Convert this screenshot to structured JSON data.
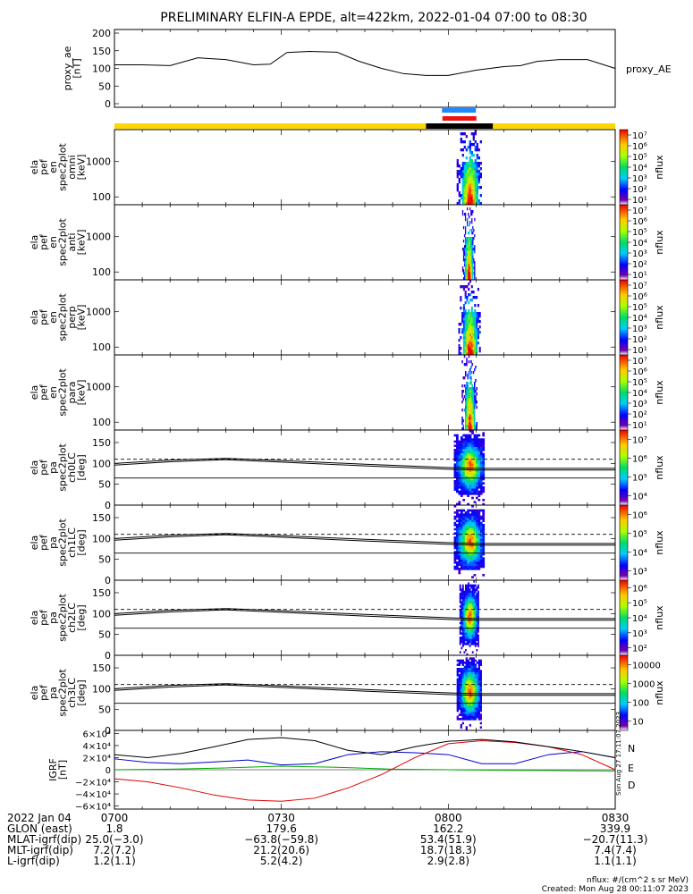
{
  "title": "PRELIMINARY ELFIN-A EPDE, alt=422km, 2022-01-04 07:00 to 08:30",
  "footer": {
    "units": "nflux: #/(cm^2 s sr MeV)",
    "created": "Created: Mon Aug 28 00:11:07 2023",
    "side_stamp": "Sun Aug 27 17:11:07 2023"
  },
  "colors": {
    "ae_line": "#000000",
    "science_bar": "#ffd700",
    "science_marker": "#000000",
    "spin_blue": "#1e88ff",
    "spin_red": "#ee1111",
    "igrf_n": "#0000cc",
    "igrf_e": "#00aa00",
    "igrf_d": "#dd0000",
    "igrf_total": "#000000"
  },
  "chart_data": [
    {
      "type": "line",
      "id": "proxy_ae",
      "ylabel": "proxy_ae [nT]",
      "legend": "proxy_AE",
      "ylim": [
        0,
        200
      ],
      "yticks": [
        "0",
        "50",
        "100",
        "150",
        "200"
      ],
      "x": [
        0,
        5,
        10,
        15,
        17,
        20,
        25,
        28,
        31,
        35,
        40,
        44,
        48,
        52,
        56,
        60,
        65,
        70,
        73,
        76,
        80,
        85,
        90
      ],
      "values": [
        110,
        110,
        108,
        130,
        128,
        125,
        110,
        112,
        145,
        148,
        146,
        120,
        100,
        85,
        80,
        80,
        95,
        105,
        108,
        120,
        125,
        125,
        100
      ]
    },
    {
      "type": "table",
      "id": "science_zone_bar",
      "science_zone_minutes": [
        [
          56,
          68
        ]
      ],
      "spin_markers": [
        "blue",
        "red"
      ]
    },
    {
      "type": "heatmap",
      "id": "en_omni",
      "ylabel": [
        "ela",
        "pef",
        "en",
        "spec2plot",
        "omni",
        "[keV]"
      ],
      "ylim": [
        60,
        8000
      ],
      "scale": "log",
      "yticks": [
        "100",
        "1000"
      ],
      "zlabel": "nflux",
      "zticks": [
        "10¹",
        "10²",
        "10³",
        "10⁴",
        "10⁵",
        "10⁶",
        "10⁷"
      ],
      "x_range": [
        61.5,
        66
      ]
    },
    {
      "type": "heatmap",
      "id": "en_anti",
      "ylabel": [
        "ela",
        "pef",
        "en",
        "spec2plot",
        "anti",
        "[keV]"
      ],
      "ylim": [
        60,
        8000
      ],
      "scale": "log",
      "yticks": [
        "100",
        "1000"
      ],
      "zlabel": "nflux",
      "zticks": [
        "10¹",
        "10²",
        "10³",
        "10⁴",
        "10⁵",
        "10⁶",
        "10⁷"
      ],
      "x_range": [
        62.5,
        64.8
      ]
    },
    {
      "type": "heatmap",
      "id": "en_perp",
      "ylabel": [
        "ela",
        "pef",
        "en",
        "spec2plot",
        "perp",
        "[keV]"
      ],
      "ylim": [
        60,
        8000
      ],
      "scale": "log",
      "yticks": [
        "100",
        "1000"
      ],
      "zlabel": "nflux",
      "zticks": [
        "10¹",
        "10²",
        "10³",
        "10⁴",
        "10⁵",
        "10⁶",
        "10⁷"
      ],
      "x_range": [
        61.8,
        65.8
      ]
    },
    {
      "type": "heatmap",
      "id": "en_para",
      "ylabel": [
        "ela",
        "pef",
        "en",
        "spec2plot",
        "para",
        "[keV]"
      ],
      "ylim": [
        60,
        8000
      ],
      "scale": "log",
      "yticks": [
        "100",
        "1000"
      ],
      "zlabel": "nflux",
      "zticks": [
        "10¹",
        "10²",
        "10³",
        "10⁴",
        "10⁵",
        "10⁶",
        "10⁷"
      ],
      "x_range": [
        62.4,
        65.2
      ]
    },
    {
      "type": "heatmap",
      "id": "pa_ch0",
      "ylabel": [
        "ela",
        "pef",
        "pa",
        "spec2plot",
        "ch0LC",
        "[deg]"
      ],
      "ylim": [
        0,
        180
      ],
      "yticks": [
        "0",
        "50",
        "100",
        "150"
      ],
      "zlabel": "nflux",
      "zticks": [
        "10⁴",
        "10⁵",
        "10⁶",
        "10⁷"
      ],
      "x_range": [
        61.0,
        66.5
      ],
      "loss_cone_deg": 110,
      "tracks": {
        "x": [
          0,
          10,
          20,
          30,
          45,
          60,
          65
        ],
        "upper": [
          100,
          108,
          112,
          107,
          98,
          90,
          88
        ],
        "lower": [
          96,
          104,
          109,
          103,
          94,
          86,
          84
        ]
      }
    },
    {
      "type": "heatmap",
      "id": "pa_ch1",
      "ylabel": [
        "ela",
        "pef",
        "pa",
        "spec2plot",
        "ch1LC",
        "[deg]"
      ],
      "ylim": [
        0,
        180
      ],
      "yticks": [
        "0",
        "50",
        "100",
        "150"
      ],
      "zlabel": "nflux",
      "zticks": [
        "10³",
        "10⁴",
        "10⁵",
        "10⁶"
      ],
      "x_range": [
        61.0,
        66.5
      ],
      "loss_cone_deg": 110,
      "tracks": {
        "x": [
          0,
          10,
          20,
          30,
          45,
          60,
          65
        ],
        "upper": [
          100,
          108,
          112,
          107,
          98,
          90,
          88
        ],
        "lower": [
          96,
          104,
          109,
          103,
          94,
          86,
          84
        ]
      }
    },
    {
      "type": "heatmap",
      "id": "pa_ch2",
      "ylabel": [
        "ela",
        "pef",
        "pa",
        "spec2plot",
        "ch2LC",
        "[deg]"
      ],
      "ylim": [
        0,
        180
      ],
      "yticks": [
        "0",
        "50",
        "100",
        "150"
      ],
      "zlabel": "nflux",
      "zticks": [
        "10²",
        "10³",
        "10⁴",
        "10⁵",
        "10⁶"
      ],
      "x_range": [
        62.0,
        65.5
      ],
      "loss_cone_deg": 110,
      "tracks": {
        "x": [
          0,
          10,
          20,
          30,
          45,
          60,
          65
        ],
        "upper": [
          100,
          108,
          112,
          107,
          98,
          90,
          88
        ],
        "lower": [
          96,
          104,
          109,
          103,
          94,
          86,
          84
        ]
      }
    },
    {
      "type": "heatmap",
      "id": "pa_ch3",
      "ylabel": [
        "ela",
        "pef",
        "pa",
        "spec2plot",
        "ch3LC",
        "[deg]"
      ],
      "ylim": [
        0,
        180
      ],
      "yticks": [
        "0",
        "50",
        "100",
        "150"
      ],
      "zlabel": "nflux",
      "zticks": [
        "10",
        "100",
        "1000",
        "10000"
      ],
      "x_range": [
        61.5,
        66.0
      ],
      "loss_cone_deg": 110,
      "tracks": {
        "x": [
          0,
          10,
          20,
          30,
          45,
          60,
          65
        ],
        "upper": [
          100,
          108,
          112,
          107,
          98,
          90,
          88
        ],
        "lower": [
          96,
          104,
          109,
          103,
          94,
          86,
          84
        ]
      }
    },
    {
      "type": "line",
      "id": "igrf",
      "ylabel": [
        "IGRF",
        "[nT]"
      ],
      "ylim": [
        -65000,
        65000
      ],
      "yticks": [
        "6×10⁴",
        "4×10⁴",
        "2×10⁴",
        "0",
        "−2×10⁴",
        "−4×10⁴",
        "−6×10⁴"
      ],
      "legend": [
        "N",
        "E",
        "D"
      ],
      "series": [
        {
          "name": "N",
          "x": [
            0,
            6,
            12,
            18,
            24,
            30,
            36,
            42,
            48,
            54,
            60,
            66,
            72,
            78,
            84,
            90
          ],
          "values": [
            18000,
            12000,
            10000,
            13000,
            16000,
            8000,
            10000,
            25000,
            30000,
            28000,
            25000,
            10000,
            10000,
            25000,
            30000,
            20000
          ]
        },
        {
          "name": "E",
          "x": [
            0,
            10,
            20,
            30,
            40,
            50,
            60,
            70,
            80,
            90
          ],
          "values": [
            0,
            1000,
            3000,
            6000,
            4000,
            1000,
            0,
            -1000,
            -1500,
            -2000
          ]
        },
        {
          "name": "D",
          "x": [
            0,
            6,
            12,
            18,
            24,
            30,
            36,
            42,
            48,
            54,
            60,
            66,
            72,
            78,
            84,
            90
          ],
          "values": [
            -15000,
            -20000,
            -30000,
            -42000,
            -50000,
            -52000,
            -47000,
            -30000,
            -8000,
            20000,
            43000,
            48000,
            45000,
            38000,
            25000,
            0
          ]
        },
        {
          "name": "total",
          "x": [
            0,
            6,
            12,
            18,
            24,
            30,
            36,
            42,
            48,
            54,
            60,
            66,
            72,
            78,
            84,
            90
          ],
          "values": [
            25000,
            20000,
            27000,
            38000,
            50000,
            53000,
            48000,
            32000,
            25000,
            38000,
            47000,
            50000,
            46000,
            38000,
            30000,
            20000
          ]
        }
      ]
    }
  ],
  "xaxis": {
    "rows": [
      {
        "label": "2022 Jan 04",
        "values": [
          "0700",
          "0730",
          "0800",
          "0830"
        ]
      },
      {
        "label": "GLON (east)",
        "values": [
          "1.8",
          "179.6",
          "162.2",
          "339.9"
        ]
      },
      {
        "label": "MLAT-igrf(dip)",
        "values": [
          "25.0(−3.0)",
          "−63.8(−59.8)",
          "53.4(51.9)",
          "−20.7(11.3)"
        ]
      },
      {
        "label": "MLT-igrf(dip)",
        "values": [
          "7.2(7.2)",
          "21.2(20.6)",
          "18.7(18.3)",
          "7.4(7.4)"
        ]
      },
      {
        "label": "L-igrf(dip)",
        "values": [
          "1.2(1.1)",
          "5.2(4.2)",
          "2.9(2.8)",
          "1.1(1.1)"
        ]
      }
    ]
  }
}
